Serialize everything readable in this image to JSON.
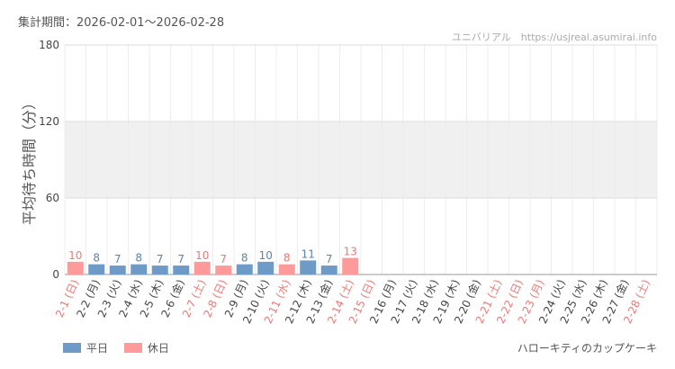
{
  "header": {
    "period_label": "集計期間：2026-02-01～2026-02-28",
    "source": "ユニバリアル　https://usjreal.asumirai.info"
  },
  "footer": {
    "attraction": "ハローキティのカップケーキ"
  },
  "legend": {
    "items": [
      {
        "label": "平日",
        "color": "#6d9ac6"
      },
      {
        "label": "休日",
        "color": "#ff9a9a"
      }
    ]
  },
  "colors": {
    "weekday_bar": "#6d9ac6",
    "holiday_bar": "#ff9a9a",
    "weekday_text": "#5b84b0",
    "holiday_text": "#f07878",
    "weekday_label": "#444444",
    "holiday_label": "#f07878",
    "band": "#f0f0f0",
    "grid": "#dddddd"
  },
  "chart_data": {
    "type": "bar",
    "ylabel": "平均待ち時間（分）",
    "ylim": [
      0,
      180
    ],
    "yticks": [
      0,
      60,
      120,
      180
    ],
    "shaded_band": [
      60,
      120
    ],
    "grid": true,
    "legend_position": "bottom-left",
    "categories": [
      "2-1 (日)",
      "2-2 (月)",
      "2-3 (火)",
      "2-4 (水)",
      "2-5 (木)",
      "2-6 (金)",
      "2-7 (土)",
      "2-8 (日)",
      "2-9 (月)",
      "2-10 (火)",
      "2-11 (水)",
      "2-12 (木)",
      "2-13 (金)",
      "2-14 (土)",
      "2-15 (日)",
      "2-16 (月)",
      "2-17 (火)",
      "2-18 (水)",
      "2-19 (木)",
      "2-20 (金)",
      "2-21 (土)",
      "2-22 (日)",
      "2-23 (月)",
      "2-24 (火)",
      "2-25 (水)",
      "2-26 (木)",
      "2-27 (金)",
      "2-28 (土)"
    ],
    "values": [
      10,
      8,
      7,
      8,
      7,
      7,
      10,
      7,
      8,
      10,
      8,
      11,
      7,
      13,
      null,
      null,
      null,
      null,
      null,
      null,
      null,
      null,
      null,
      null,
      null,
      null,
      null,
      null
    ],
    "holiday": [
      true,
      false,
      false,
      false,
      false,
      false,
      true,
      true,
      false,
      false,
      true,
      false,
      false,
      true,
      true,
      false,
      false,
      false,
      false,
      false,
      true,
      true,
      true,
      false,
      false,
      false,
      false,
      true
    ],
    "series": [
      {
        "name": "平日"
      },
      {
        "name": "休日"
      }
    ]
  }
}
